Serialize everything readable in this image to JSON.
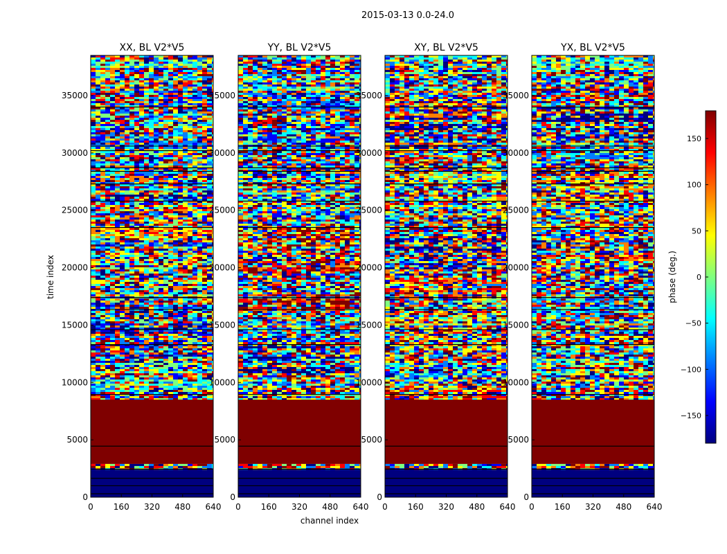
{
  "chart_data": {
    "type": "heatmap",
    "suptitle": "2015-03-13 0.0-24.0",
    "xlabel": "channel index",
    "ylabel": "time index",
    "x_range": [
      0,
      640
    ],
    "y_range": [
      0,
      38500
    ],
    "x_ticks": [
      0,
      160,
      320,
      480,
      640
    ],
    "y_ticks": [
      0,
      5000,
      10000,
      15000,
      20000,
      25000,
      30000,
      35000
    ],
    "panels": [
      {
        "title": "XX, BL V2*V5",
        "polarization": "XX"
      },
      {
        "title": "YY, BL V2*V5",
        "polarization": "YY"
      },
      {
        "title": "XY, BL V2*V5",
        "polarization": "XY"
      },
      {
        "title": "YX, BL V2*V5",
        "polarization": "YX"
      }
    ],
    "flagged_high_band": {
      "from": 2900,
      "to": 8500,
      "value": 180
    },
    "flagged_low_band": {
      "from": 0,
      "to": 2400,
      "value": -180
    },
    "horizontal_gaps_time_index": [
      300,
      1000,
      1650,
      2450,
      4450,
      8950,
      13300,
      14600,
      16350,
      17400,
      23500,
      25800,
      27300,
      28400,
      28700,
      30200,
      30600,
      34000
    ],
    "colorbar": {
      "label": "phase (deg.)",
      "range": [
        -180,
        180
      ],
      "ticks": [
        150,
        100,
        50,
        0,
        -50,
        -100,
        -150
      ],
      "colormap": "jet",
      "colors": [
        "#00007f",
        "#0000ff",
        "#007fff",
        "#00ffff",
        "#7fff7f",
        "#ffff00",
        "#ff7f00",
        "#ff0000",
        "#7f0000"
      ]
    }
  }
}
